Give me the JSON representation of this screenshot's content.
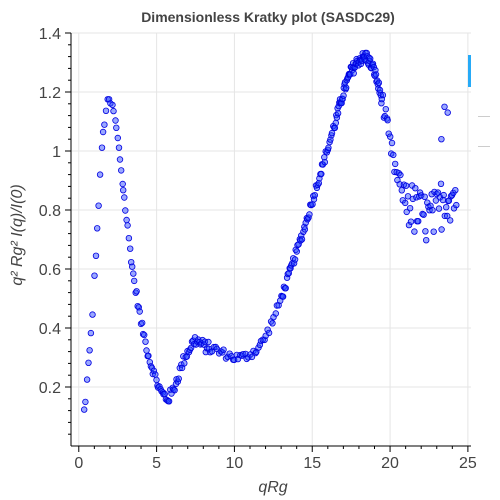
{
  "chart_data": {
    "type": "scatter",
    "title": "Dimensionless Kratky plot (SASDC29)",
    "xlabel": "qRg",
    "ylabel": "q² Rg² I(q)/I(0)",
    "xlim": [
      -0.5,
      25.2
    ],
    "ylim": [
      0.0,
      1.4
    ],
    "x_ticks": [
      0,
      5,
      10,
      15,
      20,
      25
    ],
    "y_ticks": [
      0.2,
      0.4,
      0.6,
      0.8,
      1,
      1.2,
      1.4
    ],
    "grid": true,
    "marker_color": "#1f3dff",
    "curve": [
      [
        0.25,
        0.07
      ],
      [
        0.35,
        0.12
      ],
      [
        0.5,
        0.2
      ],
      [
        0.7,
        0.32
      ],
      [
        0.9,
        0.47
      ],
      [
        1.1,
        0.65
      ],
      [
        1.3,
        0.85
      ],
      [
        1.5,
        1.02
      ],
      [
        1.7,
        1.13
      ],
      [
        1.9,
        1.17
      ],
      [
        2.1,
        1.16
      ],
      [
        2.3,
        1.12
      ],
      [
        2.6,
        1.0
      ],
      [
        3.0,
        0.8
      ],
      [
        3.5,
        0.58
      ],
      [
        4.0,
        0.42
      ],
      [
        4.5,
        0.3
      ],
      [
        5.0,
        0.22
      ],
      [
        5.3,
        0.18
      ],
      [
        5.7,
        0.16
      ],
      [
        6.0,
        0.18
      ],
      [
        6.4,
        0.24
      ],
      [
        6.8,
        0.3
      ],
      [
        7.2,
        0.34
      ],
      [
        7.5,
        0.36
      ],
      [
        8.0,
        0.34
      ],
      [
        8.5,
        0.33
      ],
      [
        9.0,
        0.32
      ],
      [
        9.5,
        0.31
      ],
      [
        10.0,
        0.3
      ],
      [
        10.5,
        0.3
      ],
      [
        11.0,
        0.31
      ],
      [
        11.5,
        0.33
      ],
      [
        12.0,
        0.37
      ],
      [
        12.5,
        0.43
      ],
      [
        13.0,
        0.5
      ],
      [
        13.5,
        0.58
      ],
      [
        14.0,
        0.66
      ],
      [
        14.5,
        0.74
      ],
      [
        15.0,
        0.83
      ],
      [
        15.5,
        0.92
      ],
      [
        16.0,
        1.01
      ],
      [
        16.5,
        1.1
      ],
      [
        17.0,
        1.2
      ],
      [
        17.5,
        1.27
      ],
      [
        18.0,
        1.31
      ],
      [
        18.5,
        1.32
      ],
      [
        19.0,
        1.27
      ],
      [
        19.5,
        1.17
      ],
      [
        20.0,
        1.02
      ],
      [
        20.5,
        0.9
      ],
      [
        21.0,
        0.84
      ],
      [
        21.5,
        0.8
      ],
      [
        22.0,
        0.78
      ],
      [
        22.5,
        0.77
      ],
      [
        23.0,
        0.78
      ],
      [
        23.5,
        0.85
      ],
      [
        24.0,
        0.85
      ]
    ],
    "point_density": [
      [
        0.0,
        2.5,
        26
      ],
      [
        2.5,
        6.0,
        50
      ],
      [
        6.0,
        8.5,
        36
      ],
      [
        8.5,
        11.0,
        22
      ],
      [
        11.0,
        13.0,
        20
      ],
      [
        13.0,
        16.5,
        60
      ],
      [
        16.5,
        19.5,
        80
      ],
      [
        19.5,
        21.0,
        22
      ],
      [
        21.0,
        24.3,
        50
      ]
    ],
    "noise_bands": [
      [
        0.0,
        5.0,
        0.015
      ],
      [
        5.0,
        9.0,
        0.02
      ],
      [
        9.0,
        16.0,
        0.015
      ],
      [
        16.0,
        19.5,
        0.02
      ],
      [
        19.5,
        21.0,
        0.04
      ],
      [
        21.0,
        24.3,
        0.09
      ]
    ],
    "highlight_points": [
      [
        23.5,
        1.15
      ],
      [
        23.7,
        1.13
      ],
      [
        23.3,
        1.04
      ]
    ]
  }
}
